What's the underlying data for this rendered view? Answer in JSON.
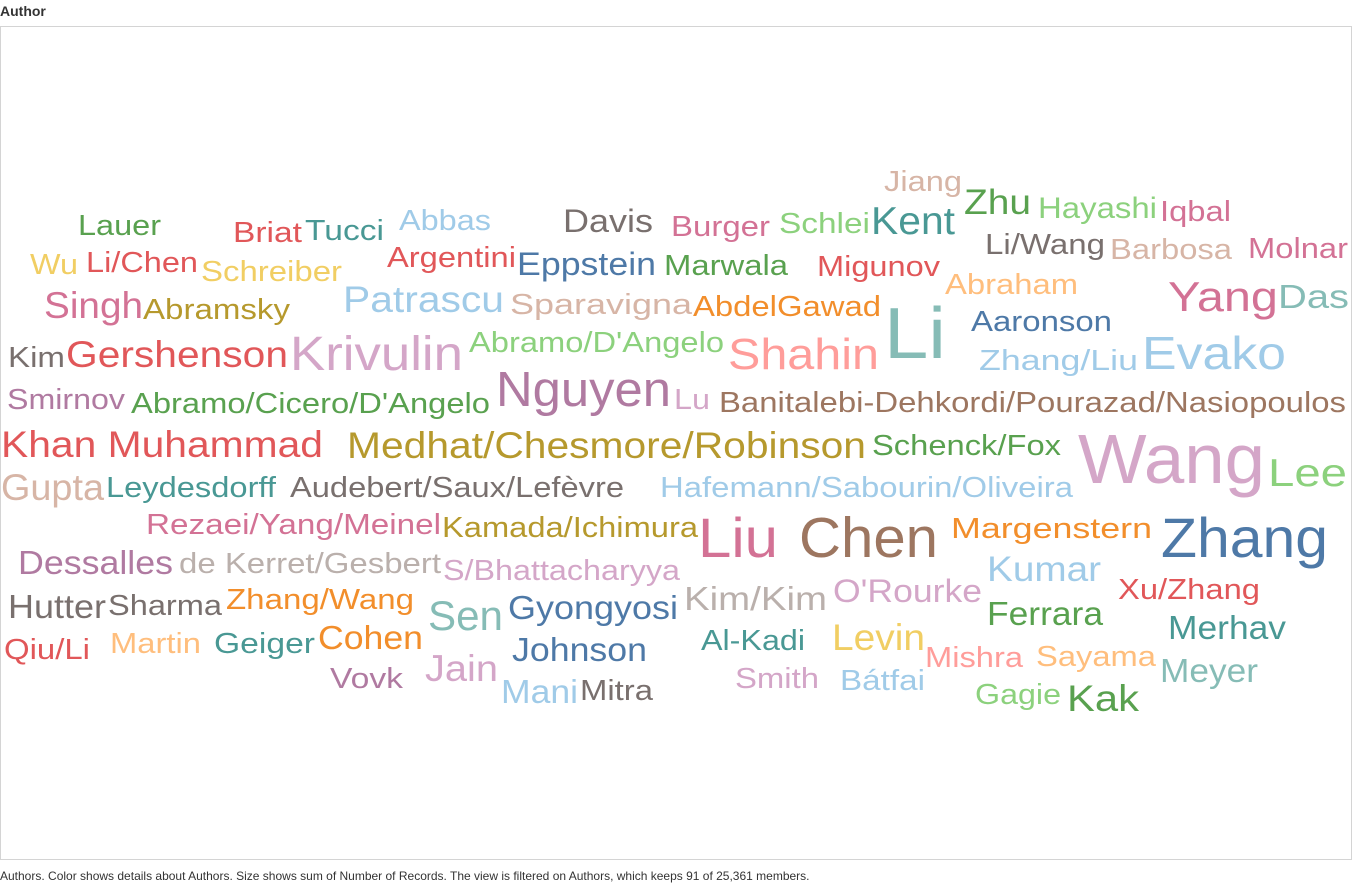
{
  "sheet": {
    "title": "Author",
    "caption": "Authors.  Color shows details about Authors.  Size shows sum of Number of Records. The view is filtered on Authors, which keeps 91 of 25,361 members."
  },
  "chart_data": {
    "type": "wordcloud",
    "title": "Author",
    "color_field": "Authors",
    "size_field": "Number of Records",
    "words": [
      {
        "text": "Jiang",
        "color": "#d7b5a6"
      },
      {
        "text": "Zhu",
        "color": "#59a14f"
      },
      {
        "text": "Hayashi",
        "color": "#8cd17d"
      },
      {
        "text": "Iqbal",
        "color": "#d37295"
      },
      {
        "text": "Lauer",
        "color": "#59a14f"
      },
      {
        "text": "Briat",
        "color": "#e15759"
      },
      {
        "text": "Tucci",
        "color": "#499894"
      },
      {
        "text": "Abbas",
        "color": "#a0cbe8"
      },
      {
        "text": "Davis",
        "color": "#79706e"
      },
      {
        "text": "Burger",
        "color": "#d37295"
      },
      {
        "text": "Schlei",
        "color": "#8cd17d"
      },
      {
        "text": "Kent",
        "color": "#499894"
      },
      {
        "text": "Li/Wang",
        "color": "#79706e"
      },
      {
        "text": "Barbosa",
        "color": "#d7b5a6"
      },
      {
        "text": "Molnar",
        "color": "#d37295"
      },
      {
        "text": "Wu",
        "color": "#f1ce63"
      },
      {
        "text": "Li/Chen",
        "color": "#e15759"
      },
      {
        "text": "Schreiber",
        "color": "#f1ce63"
      },
      {
        "text": "Argentini",
        "color": "#e15759"
      },
      {
        "text": "Eppstein",
        "color": "#4e79a7"
      },
      {
        "text": "Marwala",
        "color": "#59a14f"
      },
      {
        "text": "Migunov",
        "color": "#e15759"
      },
      {
        "text": "Abraham",
        "color": "#ffbe7d"
      },
      {
        "text": "Yang",
        "color": "#d37295"
      },
      {
        "text": "Das",
        "color": "#86bcb6"
      },
      {
        "text": "Singh",
        "color": "#d37295"
      },
      {
        "text": "Abramsky",
        "color": "#b6992d"
      },
      {
        "text": "Patrascu",
        "color": "#a0cbe8"
      },
      {
        "text": "Sparavigna",
        "color": "#d7b5a6"
      },
      {
        "text": "AbdelGawad",
        "color": "#f28e2b"
      },
      {
        "text": "Li",
        "color": "#86bcb6"
      },
      {
        "text": "Aaronson",
        "color": "#4e79a7"
      },
      {
        "text": "Kim",
        "color": "#79706e"
      },
      {
        "text": "Gershenson",
        "color": "#e15759"
      },
      {
        "text": "Krivulin",
        "color": "#d4a6c8"
      },
      {
        "text": "Abramo/D'Angelo",
        "color": "#8cd17d"
      },
      {
        "text": "Shahin",
        "color": "#ff9d9a"
      },
      {
        "text": "Zhang/Liu",
        "color": "#a0cbe8"
      },
      {
        "text": "Evako",
        "color": "#a0cbe8"
      },
      {
        "text": "Smirnov",
        "color": "#b07aa1"
      },
      {
        "text": "Abramo/Cicero/D'Angelo",
        "color": "#59a14f"
      },
      {
        "text": "Nguyen",
        "color": "#b07aa1"
      },
      {
        "text": "Lu",
        "color": "#d4a6c8"
      },
      {
        "text": "Banitalebi-Dehkordi/Pourazad/Nasiopoulos",
        "color": "#9d7660"
      },
      {
        "text": "Khan Muhammad",
        "color": "#e15759"
      },
      {
        "text": "Medhat/Chesmore/Robinson",
        "color": "#b6992d"
      },
      {
        "text": "Schenck/Fox",
        "color": "#59a14f"
      },
      {
        "text": "Wang",
        "color": "#d4a6c8"
      },
      {
        "text": "Lee",
        "color": "#8cd17d"
      },
      {
        "text": "Gupta",
        "color": "#d7b5a6"
      },
      {
        "text": "Leydesdorff",
        "color": "#499894"
      },
      {
        "text": "Audebert/Saux/Lefèvre",
        "color": "#79706e"
      },
      {
        "text": "Hafemann/Sabourin/Oliveira",
        "color": "#a0cbe8"
      },
      {
        "text": "Rezaei/Yang/Meinel",
        "color": "#d37295"
      },
      {
        "text": "Kamada/Ichimura",
        "color": "#b6992d"
      },
      {
        "text": "Liu",
        "color": "#d37295"
      },
      {
        "text": "Chen",
        "color": "#9d7660"
      },
      {
        "text": "Margenstern",
        "color": "#f28e2b"
      },
      {
        "text": "Zhang",
        "color": "#4e79a7"
      },
      {
        "text": "Dessalles",
        "color": "#b07aa1"
      },
      {
        "text": "de Kerret/Gesbert",
        "color": "#bab0ac"
      },
      {
        "text": "S/Bhattacharyya",
        "color": "#d4a6c8"
      },
      {
        "text": "Kumar",
        "color": "#a0cbe8"
      },
      {
        "text": "Hutter",
        "color": "#79706e"
      },
      {
        "text": "Sharma",
        "color": "#79706e"
      },
      {
        "text": "Zhang/Wang",
        "color": "#f28e2b"
      },
      {
        "text": "Sen",
        "color": "#86bcb6"
      },
      {
        "text": "Gyongyosi",
        "color": "#4e79a7"
      },
      {
        "text": "Kim/Kim",
        "color": "#bab0ac"
      },
      {
        "text": "O'Rourke",
        "color": "#d4a6c8"
      },
      {
        "text": "Xu/Zhang",
        "color": "#e15759"
      },
      {
        "text": "Ferrara",
        "color": "#59a14f"
      },
      {
        "text": "Merhav",
        "color": "#499894"
      },
      {
        "text": "Qiu/Li",
        "color": "#e15759"
      },
      {
        "text": "Martin",
        "color": "#ffbe7d"
      },
      {
        "text": "Geiger",
        "color": "#499894"
      },
      {
        "text": "Cohen",
        "color": "#f28e2b"
      },
      {
        "text": "Johnson",
        "color": "#4e79a7"
      },
      {
        "text": "Al-Kadi",
        "color": "#499894"
      },
      {
        "text": "Levin",
        "color": "#f1ce63"
      },
      {
        "text": "Mishra",
        "color": "#ff9d9a"
      },
      {
        "text": "Sayama",
        "color": "#ffbe7d"
      },
      {
        "text": "Jain",
        "color": "#d4a6c8"
      },
      {
        "text": "Meyer",
        "color": "#86bcb6"
      },
      {
        "text": "Vovk",
        "color": "#b07aa1"
      },
      {
        "text": "Smith",
        "color": "#d4a6c8"
      },
      {
        "text": "Bátfai",
        "color": "#a0cbe8"
      },
      {
        "text": "Mani",
        "color": "#a0cbe8"
      },
      {
        "text": "Mitra",
        "color": "#79706e"
      },
      {
        "text": "Gagie",
        "color": "#8cd17d"
      },
      {
        "text": "Kak",
        "color": "#59a14f"
      }
    ]
  }
}
